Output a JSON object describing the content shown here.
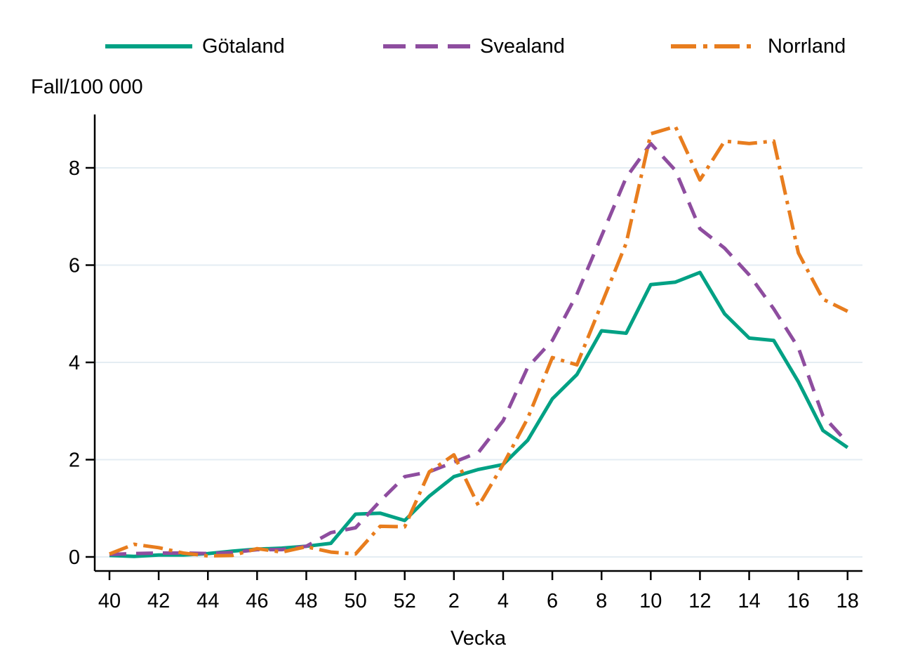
{
  "chart_data": {
    "type": "line",
    "ylabel_title": "Fall/100 000",
    "xlabel": "Vecka",
    "x": [
      "40",
      "41",
      "42",
      "43",
      "44",
      "45",
      "46",
      "47",
      "48",
      "49",
      "50",
      "51",
      "52",
      "1",
      "2",
      "3",
      "4",
      "5",
      "6",
      "7",
      "8",
      "9",
      "10",
      "11",
      "12",
      "13",
      "14",
      "15",
      "16",
      "17",
      "18"
    ],
    "x_ticks_shown": [
      "40",
      "42",
      "44",
      "46",
      "48",
      "50",
      "52",
      "2",
      "4",
      "6",
      "8",
      "10",
      "12",
      "14",
      "16",
      "18"
    ],
    "y_ticks": [
      0,
      2,
      4,
      6,
      8
    ],
    "ylim": [
      0,
      9.3
    ],
    "grid": true,
    "legend_position": "top",
    "axis_color": "#000000",
    "grid_color": "#E4EDF3",
    "series": [
      {
        "name": "Götaland",
        "color": "#00A184",
        "line_style": "solid",
        "values": [
          0.03,
          0.01,
          0.04,
          0.04,
          0.07,
          0.12,
          0.16,
          0.18,
          0.22,
          0.28,
          0.88,
          0.9,
          0.75,
          1.25,
          1.65,
          1.8,
          1.9,
          2.4,
          3.25,
          3.75,
          4.65,
          4.6,
          5.6,
          5.65,
          5.85,
          5.0,
          4.5,
          4.45,
          3.6,
          2.6,
          2.25
        ]
      },
      {
        "name": "Svealand",
        "color": "#8E4D9F",
        "line_style": "dashed",
        "values": [
          0.05,
          0.07,
          0.08,
          0.08,
          0.07,
          0.09,
          0.15,
          0.15,
          0.22,
          0.5,
          0.6,
          1.15,
          1.65,
          1.75,
          1.95,
          2.15,
          2.8,
          3.9,
          4.45,
          5.4,
          6.6,
          7.8,
          8.5,
          7.95,
          6.75,
          6.35,
          5.8,
          5.1,
          4.3,
          2.9,
          2.35
        ]
      },
      {
        "name": "Norrland",
        "color": "#E87D1E",
        "line_style": "dash-dot",
        "values": [
          0.06,
          0.26,
          0.19,
          0.08,
          0.02,
          0.03,
          0.17,
          0.1,
          0.21,
          0.1,
          0.06,
          0.63,
          0.62,
          1.75,
          2.1,
          1.05,
          1.9,
          2.85,
          4.1,
          3.95,
          5.2,
          6.45,
          8.7,
          8.85,
          7.75,
          8.55,
          8.5,
          8.55,
          6.25,
          5.3,
          5.05
        ]
      }
    ]
  }
}
